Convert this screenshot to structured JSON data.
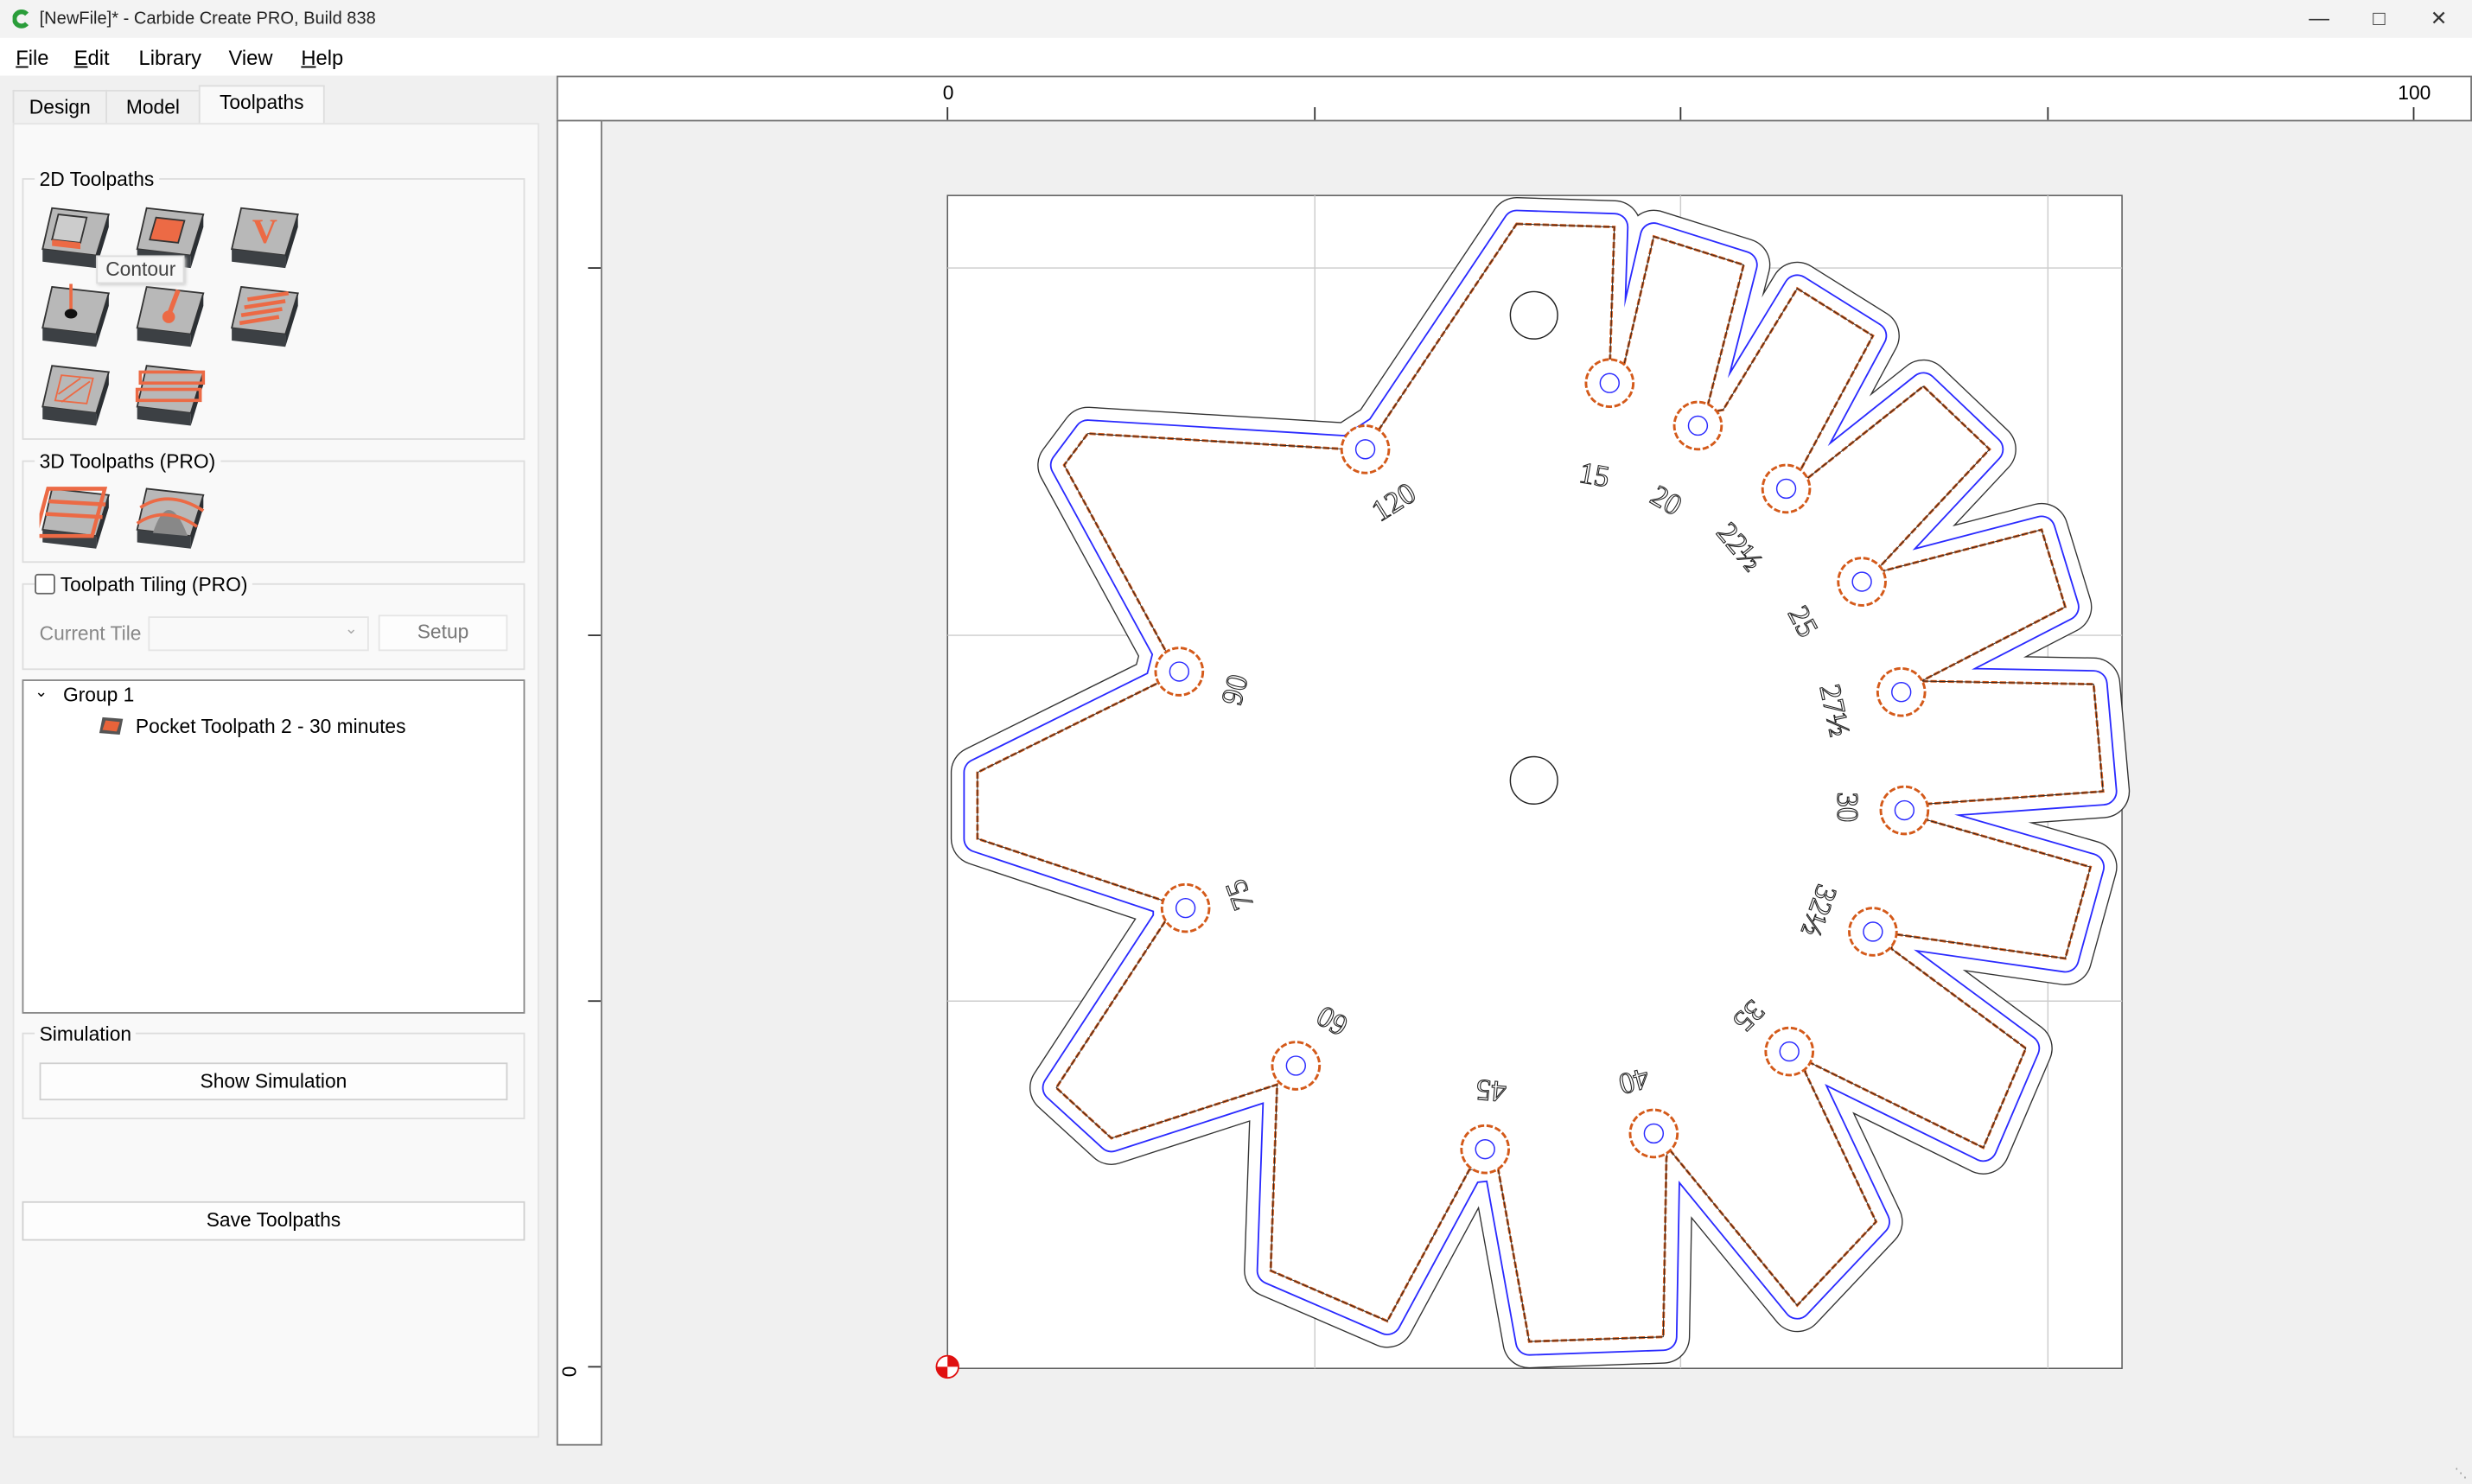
{
  "window": {
    "title": "[NewFile]* - Carbide Create PRO, Build 838",
    "controls": [
      "minimize",
      "maximize",
      "close"
    ]
  },
  "menu": [
    {
      "label": "File",
      "u": "F",
      "rest": "ile"
    },
    {
      "label": "Edit",
      "u": "E",
      "rest": "dit"
    },
    {
      "label": "Library",
      "u": "",
      "rest": "Library"
    },
    {
      "label": "View",
      "u": "",
      "rest": "View"
    },
    {
      "label": "Help",
      "u": "H",
      "rest": "elp"
    }
  ],
  "tabs": [
    {
      "label": "Design"
    },
    {
      "label": "Model"
    },
    {
      "label": "Toolpaths",
      "active": true
    }
  ],
  "toolpaths2d": {
    "title": "2D Toolpaths",
    "tooltip": "Contour",
    "tools": [
      "contour-icon",
      "pocket-icon",
      "vcarve-icon",
      "drill-icon",
      "advanced-vcarve-icon",
      "texture-icon",
      "hatch-icon",
      "rough-icon"
    ]
  },
  "toolpaths3d": {
    "title": "3D Toolpaths (PRO)",
    "tools": [
      "3d-rough-icon",
      "3d-finish-icon"
    ]
  },
  "tiling": {
    "label": "Toolpath Tiling (PRO)",
    "checked": false,
    "current_tile_label": "Current Tile",
    "current_tile_value": "",
    "setup_label": "Setup"
  },
  "tree": {
    "group": "Group 1",
    "items": [
      {
        "label": "Pocket Toolpath 2 - 30 minutes"
      }
    ]
  },
  "simulation": {
    "title": "Simulation",
    "button": "Show Simulation"
  },
  "save_button": "Save Toolpaths",
  "rulers": {
    "top": [
      "0",
      "100"
    ],
    "left": [
      "0"
    ]
  },
  "design_labels": [
    "15",
    "20",
    "22½",
    "25",
    "27½",
    "30",
    "32½",
    "35",
    "40",
    "45",
    "60",
    "75",
    "90",
    "120"
  ],
  "colors": {
    "toolpath": "#d45a1a",
    "offset": "#2a2aff",
    "outline": "#333333",
    "origin": "#e01010"
  }
}
